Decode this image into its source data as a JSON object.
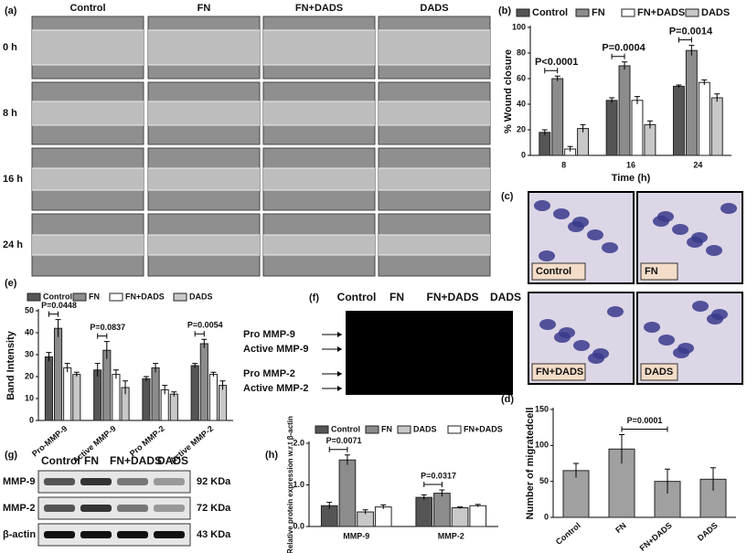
{
  "panel_a": {
    "label": "(a)",
    "columns": [
      "Control",
      "FN",
      "FN+DADS",
      "DADS"
    ],
    "rows": [
      "0 h",
      "8 h",
      "16 h",
      "24 h"
    ]
  },
  "panel_c": {
    "label": "(c)",
    "images": [
      "Control",
      "FN",
      "FN+DADS",
      "DADS"
    ]
  },
  "panel_f": {
    "label": "(f)",
    "columns": [
      "Control",
      "FN",
      "FN+DADS",
      "DADS"
    ],
    "rows": [
      "Pro MMP-9",
      "Active MMP-9",
      "Pro MMP-2",
      "Active MMP-2"
    ]
  },
  "panel_g": {
    "label": "(g)",
    "columns": [
      "Control",
      "FN",
      "FN+DADS",
      "DADS"
    ],
    "rows": [
      {
        "name": "MMP-9",
        "size": "92 KDa"
      },
      {
        "name": "MMP-2",
        "size": "72 KDa"
      },
      {
        "name": "β-actin",
        "size": "43 KDa"
      }
    ]
  },
  "chart_data": [
    {
      "type": "bar",
      "label": "(b)",
      "y_label": "% Wound closure",
      "x_label": "Time (h)",
      "categories": [
        "8",
        "16",
        "24"
      ],
      "series": [
        {
          "name": "Control",
          "color": "#555555",
          "values": [
            18,
            43,
            54
          ],
          "errors": [
            2,
            2,
            1
          ]
        },
        {
          "name": "FN",
          "color": "#8c8c8c",
          "values": [
            60,
            70,
            82
          ],
          "errors": [
            2,
            3,
            4
          ]
        },
        {
          "name": "FN+DADS",
          "color": "#ffffff",
          "values": [
            5,
            43,
            57
          ],
          "errors": [
            2,
            3,
            2
          ]
        },
        {
          "name": "DADS",
          "color": "#c8c8c8",
          "values": [
            21,
            24,
            45
          ],
          "errors": [
            3,
            3,
            3
          ]
        }
      ],
      "ylim": [
        0,
        100
      ],
      "yticks": [
        0,
        20,
        40,
        60,
        80,
        100
      ],
      "annotations": [
        "P<0.0001",
        "P=0.0004",
        "P=0.0014"
      ]
    },
    {
      "type": "bar",
      "label": "(d)",
      "y_label": "Number of migratedcell",
      "categories": [
        "Control",
        "FN",
        "FN+DADS",
        "DADS"
      ],
      "values": [
        65,
        95,
        50,
        53
      ],
      "errors": [
        10,
        20,
        17,
        16
      ],
      "color": "#a0a0a0",
      "ylim": [
        0,
        150
      ],
      "yticks": [
        0,
        50,
        100,
        150
      ],
      "annotations": [
        "P=0.0001"
      ]
    },
    {
      "type": "bar",
      "label": "(e)",
      "y_label": "Band Intensity",
      "categories": [
        "Pro-MMP-9",
        "Active MMP-9",
        "Pro MMP-2",
        "Active MMP-2"
      ],
      "series": [
        {
          "name": "Control",
          "color": "#555555",
          "values": [
            29,
            23,
            19,
            25
          ],
          "errors": [
            2,
            3,
            1,
            1
          ]
        },
        {
          "name": "FN",
          "color": "#8c8c8c",
          "values": [
            42,
            32,
            24,
            35
          ],
          "errors": [
            4,
            4,
            2,
            2
          ]
        },
        {
          "name": "FN+DADS",
          "color": "#ffffff",
          "values": [
            24,
            21,
            14,
            21
          ],
          "errors": [
            2,
            2,
            2,
            1
          ]
        },
        {
          "name": "DADS",
          "color": "#c8c8c8",
          "values": [
            21,
            15,
            12,
            16
          ],
          "errors": [
            1,
            3,
            1,
            2
          ]
        }
      ],
      "ylim": [
        0,
        50
      ],
      "yticks": [
        0,
        10,
        20,
        30,
        40,
        50
      ],
      "annotations": [
        "P=0.0448",
        "P=0.0837",
        "P=0.0054"
      ]
    },
    {
      "type": "bar",
      "label": "(h)",
      "y_label": "Relative protein expression w.r.t β-actin",
      "categories": [
        "MMP-9",
        "MMP-2"
      ],
      "series": [
        {
          "name": "Control",
          "color": "#555555",
          "values": [
            0.5,
            0.7
          ],
          "errors": [
            0.08,
            0.06
          ]
        },
        {
          "name": "FN",
          "color": "#8c8c8c",
          "values": [
            1.6,
            0.8
          ],
          "errors": [
            0.12,
            0.08
          ]
        },
        {
          "name": "DADS",
          "color": "#c8c8c8",
          "values": [
            0.35,
            0.45
          ],
          "errors": [
            0.05,
            0.02
          ]
        },
        {
          "name": "FN+DADS",
          "color": "#ffffff",
          "values": [
            0.47,
            0.5
          ],
          "errors": [
            0.05,
            0.03
          ]
        }
      ],
      "ylim": [
        0,
        2
      ],
      "yticks": [
        {
          "value": 0,
          "label": "0.0"
        },
        {
          "value": 1,
          "label": "1.0"
        },
        {
          "value": 2,
          "label": "2.0"
        }
      ],
      "annotations": [
        "P=0.0071",
        "P=0.0317"
      ]
    }
  ]
}
